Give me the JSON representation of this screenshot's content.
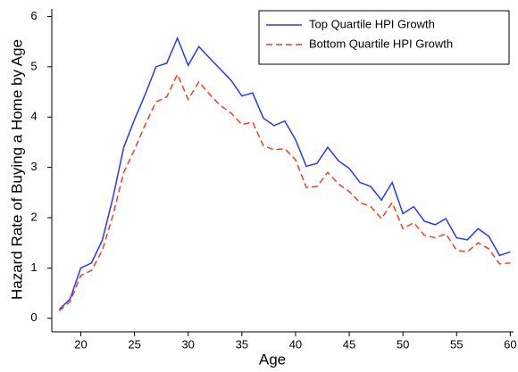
{
  "chart_data": {
    "type": "line",
    "x_label": "Age",
    "y_label": "Hazard Rate of Buying a Home by Age",
    "x": [
      18,
      19,
      20,
      21,
      22,
      23,
      24,
      25,
      26,
      27,
      28,
      29,
      30,
      31,
      32,
      33,
      34,
      35,
      36,
      37,
      38,
      39,
      40,
      41,
      42,
      43,
      44,
      45,
      46,
      47,
      48,
      49,
      50,
      51,
      52,
      53,
      54,
      55,
      56,
      57,
      58,
      59,
      60
    ],
    "series": [
      {
        "name": "Top Quartile HPI Growth",
        "color": "#2638ff",
        "line_style": "solid",
        "values": [
          0.18,
          0.38,
          1.0,
          1.1,
          1.55,
          2.4,
          3.4,
          3.95,
          4.45,
          5.0,
          5.07,
          5.57,
          5.03,
          5.4,
          5.17,
          4.95,
          4.73,
          4.42,
          4.48,
          3.98,
          3.83,
          3.92,
          3.55,
          3.02,
          3.08,
          3.4,
          3.13,
          2.98,
          2.7,
          2.62,
          2.35,
          2.7,
          2.08,
          2.22,
          1.93,
          1.86,
          1.98,
          1.6,
          1.56,
          1.78,
          1.63,
          1.25,
          1.32
        ]
      },
      {
        "name": "Bottom Quartile HPI Growth",
        "color": "#ff3b1f",
        "line_style": "dashed",
        "values": [
          0.15,
          0.33,
          0.85,
          0.95,
          1.35,
          2.05,
          2.9,
          3.35,
          3.85,
          4.3,
          4.4,
          4.85,
          4.35,
          4.7,
          4.45,
          4.23,
          4.08,
          3.85,
          3.9,
          3.43,
          3.35,
          3.37,
          3.15,
          2.6,
          2.62,
          2.9,
          2.67,
          2.52,
          2.3,
          2.22,
          1.98,
          2.3,
          1.78,
          1.9,
          1.65,
          1.6,
          1.68,
          1.35,
          1.32,
          1.5,
          1.38,
          1.08,
          1.1
        ]
      }
    ],
    "xlim": [
      17.3,
      60.3
    ],
    "xticks": [
      20,
      25,
      30,
      35,
      40,
      45,
      50,
      55,
      60
    ],
    "ylim": [
      -0.27,
      6.15
    ],
    "yticks": [
      0,
      1,
      2,
      3,
      4,
      5,
      6
    ],
    "grid": false,
    "legend": "top-right"
  }
}
